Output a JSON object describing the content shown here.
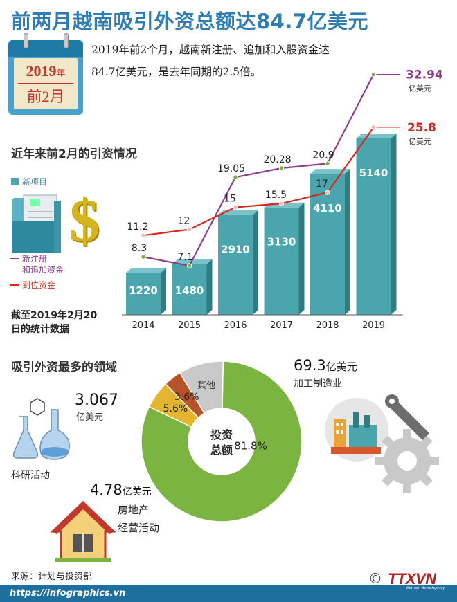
{
  "title": "前两月越南吸引外资总额达84.7亿美元",
  "calendar": {
    "year": "2019",
    "year_suffix": "年",
    "month": "前2月"
  },
  "intro": {
    "line1": "2019年前2个月，越南新注册、追加和入股资金达",
    "line2": "84.7亿美元，是去年同期的2.5倍。"
  },
  "section1_title": "近年来前2月的引资情况",
  "legend": {
    "bars": "新项目",
    "purple_line": [
      "新注册",
      "和追加资金"
    ],
    "red_line": "到位资金"
  },
  "note": [
    "截至2019年2月20",
    "日的统计数据"
  ],
  "colors": {
    "bar": "#4aa5ad",
    "bar_dark": "#2f7c83",
    "purple": "#8d3d8e",
    "red": "#d7281f",
    "green": "#7bb441",
    "accent_title": "#2e7db4"
  },
  "chart_data": [
    {
      "type": "bar",
      "categories": [
        "2014",
        "2015",
        "2016",
        "2017",
        "2018",
        "2019"
      ],
      "series": [
        {
          "name": "新项目",
          "values": [
            1220,
            1480,
            2910,
            3130,
            4110,
            5140
          ]
        },
        {
          "name": "新注册和追加资金",
          "values": [
            8.3,
            7.1,
            19.05,
            20.28,
            20.9,
            32.94
          ]
        },
        {
          "name": "到位资金",
          "values": [
            11.2,
            12,
            15,
            15.5,
            17,
            25.8
          ]
        }
      ],
      "end_labels": {
        "purple": "32.94",
        "red": "25.8",
        "unit": "亿美元"
      }
    },
    {
      "type": "pie",
      "categories": [
        "加工制造业",
        "其他",
        "房地产经营活动",
        "科研活动"
      ],
      "values": [
        81.8,
        9.0,
        5.6,
        3.6
      ],
      "labels": [
        "81.8%",
        "",
        "5.6%",
        "3.6%"
      ],
      "other_label": "其他",
      "center_label": [
        "投资",
        "总额"
      ]
    }
  ],
  "section2_title": "吸引外资最多的领域",
  "sectors": {
    "manufacturing": {
      "value": "69.3",
      "unit": "亿美元",
      "label": "加工制造业"
    },
    "science": {
      "value": "3.067",
      "unit": "亿美元",
      "label": "科研活动"
    },
    "real_estate": {
      "value": "4.78",
      "unit": "亿美元",
      "label1": "房地产",
      "label2": "经营活动"
    }
  },
  "source": "来源：计划与投资部",
  "footer_url": "https://infographics.vn",
  "brand": {
    "copyright": "©",
    "logo": "TTXVN",
    "sub": "Vietnam News Agency"
  }
}
